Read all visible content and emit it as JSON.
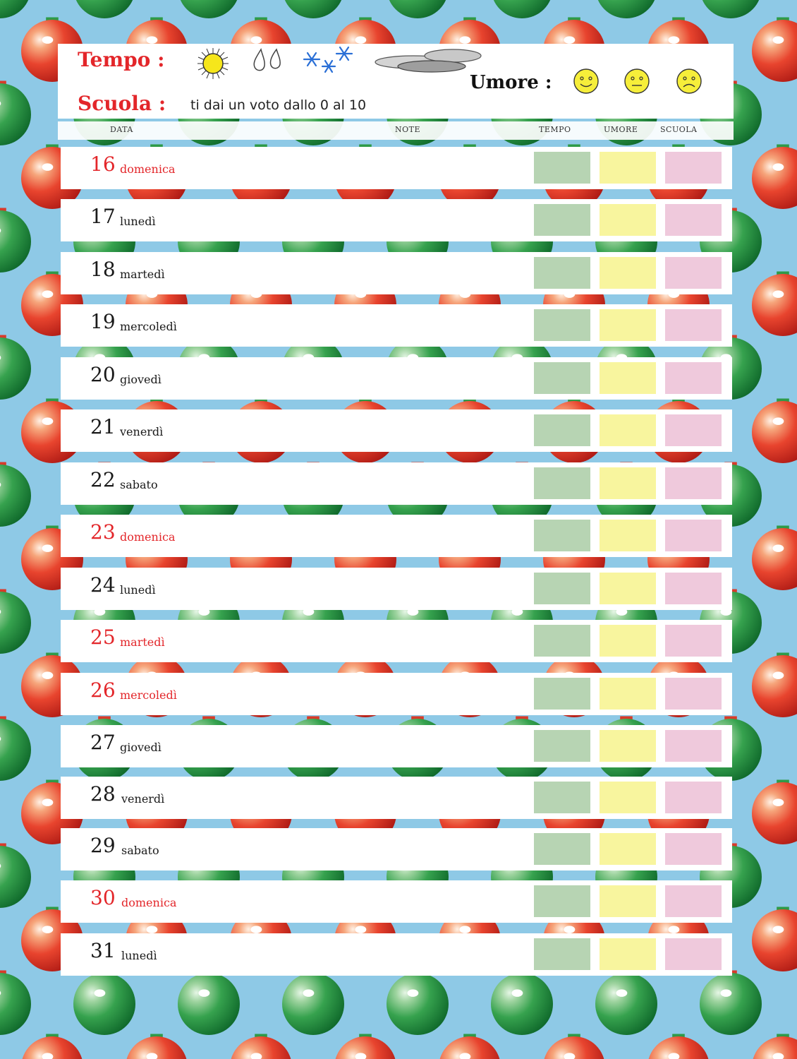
{
  "header": {
    "tempo_label": "Tempo :",
    "scuola_label": "Scuola :",
    "scuola_hint": "ti dai un voto dallo 0 al 10",
    "umore_label": "Umore :",
    "weather_icons": [
      "sun-icon",
      "rain-drops-icon",
      "snowflakes-icon",
      "clouds-icon"
    ],
    "mood_icons": [
      "happy-face-icon",
      "neutral-face-icon",
      "sad-face-icon"
    ]
  },
  "columns": {
    "data": "DATA",
    "note": "NOTE",
    "tempo": "TEMPO",
    "umore": "UMORE",
    "scuola": "SCUOLA"
  },
  "colors": {
    "holiday": "#e3262a",
    "regular": "#1a1a1a",
    "tempo_box": "#b7d4b3",
    "umore_box": "#f8f59e",
    "scuola_box": "#efc9dc",
    "background": "#8ec9e6"
  },
  "days": [
    {
      "num": "16",
      "day": "domenica",
      "holiday": true
    },
    {
      "num": "17",
      "day": "lunedì",
      "holiday": false
    },
    {
      "num": "18",
      "day": "martedì",
      "holiday": false
    },
    {
      "num": "19",
      "day": "mercoledì",
      "holiday": false
    },
    {
      "num": "20",
      "day": "giovedì",
      "holiday": false
    },
    {
      "num": "21",
      "day": "venerdì",
      "holiday": false
    },
    {
      "num": "22",
      "day": "sabato",
      "holiday": false
    },
    {
      "num": "23",
      "day": "domenica",
      "holiday": true
    },
    {
      "num": "24",
      "day": "lunedì",
      "holiday": false
    },
    {
      "num": "25",
      "day": "martedì",
      "holiday": true
    },
    {
      "num": "26",
      "day": "mercoledì",
      "holiday": true
    },
    {
      "num": "27",
      "day": "giovedì",
      "holiday": false
    },
    {
      "num": "28",
      "day": "venerdì",
      "holiday": false
    },
    {
      "num": "29",
      "day": "sabato",
      "holiday": false
    },
    {
      "num": "30",
      "day": "domenica",
      "holiday": true
    },
    {
      "num": "31",
      "day": "lunedì",
      "holiday": false
    }
  ]
}
